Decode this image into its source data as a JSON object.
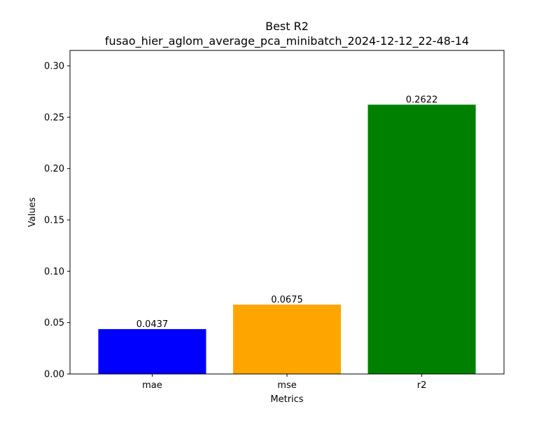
{
  "chart_data": {
    "type": "bar",
    "title": "Best R2",
    "subtitle": "fusao_hier_aglom_average_pca_minibatch_2024-12-12_22-48-14",
    "xlabel": "Metrics",
    "ylabel": "Values",
    "categories": [
      "mae",
      "mse",
      "r2"
    ],
    "values": [
      0.0437,
      0.0675,
      0.2622
    ],
    "value_labels": [
      "0.0437",
      "0.0675",
      "0.2622"
    ],
    "colors": [
      "#0000ff",
      "#ffa500",
      "#008000"
    ],
    "ylim": [
      0,
      0.315
    ],
    "yticks": [
      0.0,
      0.05,
      0.1,
      0.15,
      0.2,
      0.25,
      0.3
    ],
    "ytick_labels": [
      "0.00",
      "0.05",
      "0.10",
      "0.15",
      "0.20",
      "0.25",
      "0.30"
    ],
    "grid": false,
    "legend": "none"
  }
}
